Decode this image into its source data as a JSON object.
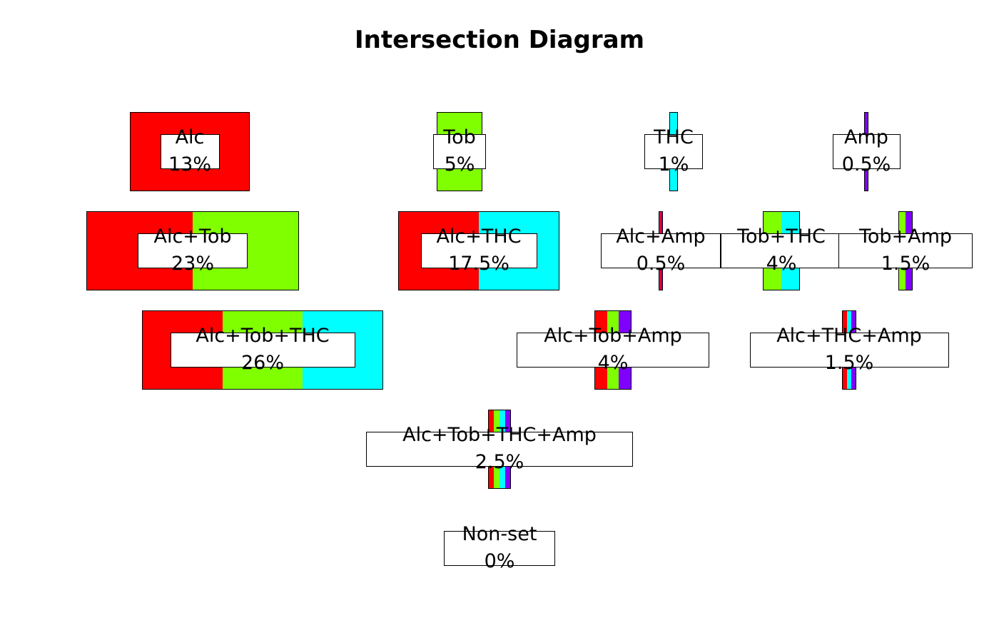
{
  "chart_data": {
    "type": "intersection-diagram",
    "title": "Intersection Diagram",
    "sets": [
      "Alc",
      "Tob",
      "THC",
      "Amp"
    ],
    "colors": {
      "Alc": "#FF0000",
      "Tob": "#80FF00",
      "THC": "#00FFFF",
      "Amp": "#8000FF"
    },
    "rows": [
      [
        {
          "label": "Alc",
          "value": "13%",
          "pct": 13,
          "members": [
            "Alc"
          ]
        },
        {
          "label": "Tob",
          "value": "5%",
          "pct": 5,
          "members": [
            "Tob"
          ]
        },
        {
          "label": "THC",
          "value": "1%",
          "pct": 1,
          "members": [
            "THC"
          ]
        },
        {
          "label": "Amp",
          "value": "0.5%",
          "pct": 0.5,
          "members": [
            "Amp"
          ]
        }
      ],
      [
        {
          "label": "Alc+Tob",
          "value": "23%",
          "pct": 23,
          "members": [
            "Alc",
            "Tob"
          ]
        },
        {
          "label": "Alc+THC",
          "value": "17.5%",
          "pct": 17.5,
          "members": [
            "Alc",
            "THC"
          ]
        },
        {
          "label": "Alc+Amp",
          "value": "0.5%",
          "pct": 0.5,
          "members": [
            "Alc",
            "Amp"
          ]
        },
        {
          "label": "Tob+THC",
          "value": "4%",
          "pct": 4,
          "members": [
            "Tob",
            "THC"
          ]
        },
        {
          "label": "Tob+Amp",
          "value": "1.5%",
          "pct": 1.5,
          "members": [
            "Tob",
            "Amp"
          ]
        }
      ],
      [
        {
          "label": "Alc+Tob+THC",
          "value": "26%",
          "pct": 26,
          "members": [
            "Alc",
            "Tob",
            "THC"
          ]
        },
        {
          "label": "Alc+Tob+Amp",
          "value": "4%",
          "pct": 4,
          "members": [
            "Alc",
            "Tob",
            "Amp"
          ]
        },
        {
          "label": "Alc+THC+Amp",
          "value": "1.5%",
          "pct": 1.5,
          "members": [
            "Alc",
            "THC",
            "Amp"
          ]
        }
      ],
      [
        {
          "label": "Alc+Tob+THC+Amp",
          "value": "2.5%",
          "pct": 2.5,
          "members": [
            "Alc",
            "Tob",
            "THC",
            "Amp"
          ]
        }
      ],
      [
        {
          "label": "Non-set",
          "value": "0%",
          "pct": 0,
          "members": []
        }
      ]
    ]
  }
}
